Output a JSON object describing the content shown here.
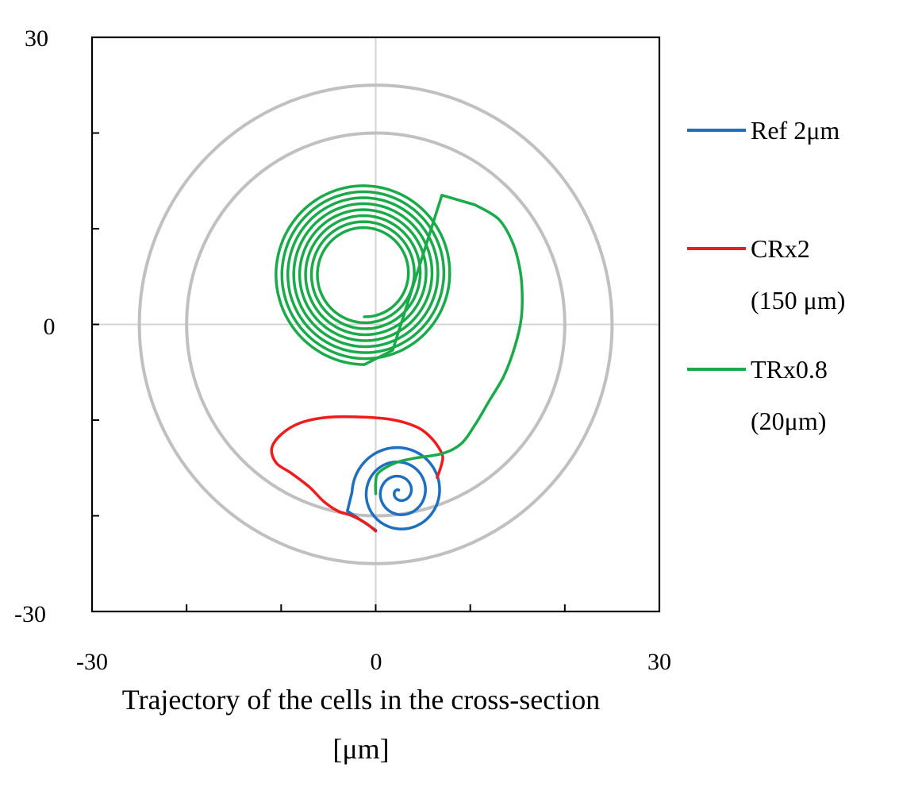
{
  "chart_data": {
    "type": "line",
    "title": "",
    "xlabel_line1": "Trajectory of the cells in the cross-section",
    "xlabel_line2": "[μm]",
    "ylabel": "",
    "xlim": [
      -30,
      30
    ],
    "ylim": [
      -30,
      30
    ],
    "xtick_labels": [
      "-30",
      "0",
      "30"
    ],
    "ytick_labels": [
      "30",
      "0",
      "-30"
    ],
    "minor_tick_step": 10,
    "grid": "center cross lines at x=0 and y=0",
    "boundary_circles": [
      {
        "name": "inner-wall",
        "radius": 20,
        "color": "#c0c0c0"
      },
      {
        "name": "outer-wall",
        "radius": 25,
        "color": "#c0c0c0"
      }
    ],
    "legend_position": "right",
    "series": [
      {
        "name": "Ref 2μm",
        "legend_lines": [
          "Ref 2μm"
        ],
        "color": "#1f6fc0",
        "kind": "spiral",
        "center": [
          2.5,
          -17.5
        ],
        "start": [
          0,
          -21.5
        ],
        "start_radius": 5,
        "end_radius": 0.2,
        "turns": 3.2,
        "start_angle_deg": 180
      },
      {
        "name": "CRx2 (150 μm)",
        "legend_lines": [
          "CRx2",
          "(150 μm)"
        ],
        "color": "#ee1c1c",
        "kind": "path",
        "points": [
          [
            0,
            -21.6
          ],
          [
            -1,
            -20.8
          ],
          [
            -2.5,
            -20
          ],
          [
            -4,
            -19.5
          ],
          [
            -5.5,
            -18.5
          ],
          [
            -7,
            -17
          ],
          [
            -9,
            -15.5
          ],
          [
            -10.5,
            -14.5
          ],
          [
            -11,
            -13
          ],
          [
            -10,
            -11.5
          ],
          [
            -8,
            -10.3
          ],
          [
            -5,
            -9.7
          ],
          [
            -1,
            -9.7
          ],
          [
            2,
            -10
          ],
          [
            4.5,
            -10.8
          ],
          [
            6,
            -12
          ],
          [
            7,
            -13.5
          ],
          [
            7,
            -14.5
          ],
          [
            6.5,
            -16
          ]
        ]
      },
      {
        "name": "TRx0.8 (20μm)",
        "legend_lines": [
          "TRx0.8",
          "(20μm)"
        ],
        "color": "#1aaa4a",
        "kind": "spiral_with_tail",
        "center": [
          -1.2,
          5.3
        ],
        "start_radius": 4.5,
        "end_radius": 9.5,
        "turns": 8,
        "start_angle_deg": 270,
        "tail": [
          [
            13,
            11
          ],
          [
            14.5,
            8.5
          ],
          [
            15.3,
            5.5
          ],
          [
            15.5,
            2.5
          ],
          [
            15.3,
            0
          ],
          [
            14.5,
            -3
          ],
          [
            13.5,
            -5.5
          ],
          [
            12,
            -8
          ],
          [
            10.5,
            -10.5
          ],
          [
            9,
            -12.5
          ],
          [
            7,
            -13.5
          ],
          [
            4,
            -14
          ],
          [
            2,
            -14.5
          ],
          [
            0.3,
            -15.5
          ],
          [
            0,
            -16.5
          ],
          [
            0,
            -17.7
          ]
        ]
      }
    ]
  }
}
